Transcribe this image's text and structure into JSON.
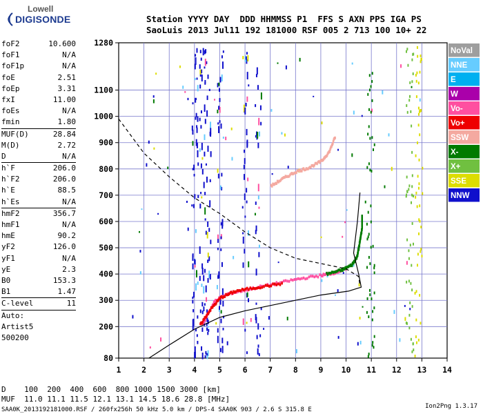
{
  "logo": {
    "line1": "Lowell",
    "line2": "DIGISONDE"
  },
  "header": {
    "line1": "Station YYYY DAY  DDD HHMMSS P1  FFS S AXN PPS IGA PS",
    "line2": "SaoLuis 2013 Jul11 192 181000 RSF 005 2 713 100 10+ 22"
  },
  "params": [
    {
      "key": "foF2",
      "val": "10.600"
    },
    {
      "key": "foF1",
      "val": "N/A"
    },
    {
      "key": "foF1p",
      "val": "N/A"
    },
    {
      "key": "foE",
      "val": "2.51"
    },
    {
      "key": "foEp",
      "val": "3.31"
    },
    {
      "key": "fxI",
      "val": "11.00"
    },
    {
      "key": "foEs",
      "val": "N/A"
    },
    {
      "key": "fmin",
      "val": "1.80"
    },
    {
      "key": "MUF(D)",
      "val": "28.84",
      "sep": true
    },
    {
      "key": "M(D)",
      "val": "2.72"
    },
    {
      "key": "D",
      "val": "N/A"
    },
    {
      "key": "h`F",
      "val": "206.0",
      "sep": true
    },
    {
      "key": "h`F2",
      "val": "206.0"
    },
    {
      "key": "h`E",
      "val": "88.5"
    },
    {
      "key": "h`Es",
      "val": "N/A"
    },
    {
      "key": "hmF2",
      "val": "356.7",
      "sep": true
    },
    {
      "key": "hmF1",
      "val": "N/A"
    },
    {
      "key": "hmE",
      "val": "90.2"
    },
    {
      "key": "yF2",
      "val": "126.0"
    },
    {
      "key": "yF1",
      "val": "N/A"
    },
    {
      "key": "yE",
      "val": "2.3"
    },
    {
      "key": "B0",
      "val": "153.3"
    },
    {
      "key": "B1",
      "val": "1.47"
    },
    {
      "key": "C-level",
      "val": "11",
      "sep": true
    },
    {
      "key": "Auto:",
      "val": "",
      "sep": true
    },
    {
      "key": "Artist5",
      "val": ""
    },
    {
      "key": "500200",
      "val": ""
    }
  ],
  "footer": {
    "d_line": "D    100  200  400  600  800 1000 1500 3000 [km]",
    "muf_line": "MUF  11.0 11.1 11.5 12.1 13.1 14.5 18.6 28.8 [MHz]",
    "file_line": "SAA0K_2013192181000.RSF / 260fx256h 50 kHz 5.0 km / DPS-4 SAA0K 903 / 2.6 S 315.8 E",
    "version": "Ion2Png 1.3.17"
  },
  "legend": [
    {
      "label": "NoVal",
      "color": "#9e9e9e"
    },
    {
      "label": "NNE",
      "color": "#66ccff"
    },
    {
      "label": "E",
      "color": "#00b0f0"
    },
    {
      "label": "W",
      "color": "#aa00aa"
    },
    {
      "label": "Vo-",
      "color": "#ff4fa0"
    },
    {
      "label": "Vo+",
      "color": "#ee0000"
    },
    {
      "label": "SSW",
      "color": "#f4a9a0"
    },
    {
      "label": "X-",
      "color": "#007a00"
    },
    {
      "label": "X+",
      "color": "#70c040"
    },
    {
      "label": "SSE",
      "color": "#dddd00"
    },
    {
      "label": "NNW",
      "color": "#1010cc"
    }
  ],
  "chart_data": {
    "type": "scatter",
    "x_range": [
      1,
      14
    ],
    "y_range": [
      80,
      1280
    ],
    "x_ticks": [
      1,
      2,
      3,
      4,
      5,
      6,
      7,
      8,
      9,
      10,
      11,
      12,
      13,
      14
    ],
    "y_ticks": [
      80,
      200,
      300,
      400,
      500,
      600,
      700,
      800,
      900,
      1000,
      1100,
      1280
    ],
    "grid": true,
    "legend_position": "right",
    "series": [
      {
        "name": "Vo-",
        "color": "#ff4fa0",
        "points": [
          [
            4.3,
            215
          ],
          [
            4.5,
            255
          ],
          [
            4.8,
            305
          ],
          [
            5.3,
            330
          ],
          [
            6,
            345
          ],
          [
            7,
            365
          ],
          [
            8,
            385
          ],
          [
            9,
            400
          ],
          [
            9.5,
            410
          ],
          [
            10,
            425
          ]
        ]
      },
      {
        "name": "Vo+",
        "color": "#ee0000",
        "points": [
          [
            4.2,
            212
          ],
          [
            4.6,
            270
          ],
          [
            5,
            315
          ],
          [
            5.6,
            340
          ],
          [
            6.5,
            355
          ],
          [
            7.5,
            370
          ]
        ]
      },
      {
        "name": "X-",
        "color": "#007a00",
        "points": [
          [
            9.2,
            405
          ],
          [
            9.8,
            420
          ],
          [
            10.2,
            440
          ],
          [
            10.4,
            470
          ],
          [
            10.5,
            520
          ],
          [
            10.6,
            580
          ],
          [
            10.6,
            630
          ]
        ]
      },
      {
        "name": "SSW",
        "color": "#f4a9a0",
        "points": [
          [
            7,
            740
          ],
          [
            7.5,
            770
          ],
          [
            8,
            795
          ],
          [
            8.5,
            810
          ],
          [
            9,
            835
          ],
          [
            9.3,
            870
          ],
          [
            9.55,
            930
          ]
        ]
      },
      {
        "name": "NNW",
        "color": "#1010cc",
        "points": [
          [
            4,
            1200
          ],
          [
            4.1,
            1000
          ],
          [
            4.3,
            800
          ],
          [
            4.5,
            600
          ],
          [
            4.6,
            400
          ],
          [
            5,
            1150
          ],
          [
            6.5,
            900
          ]
        ]
      }
    ],
    "profile_solid": [
      [
        2.2,
        80
      ],
      [
        3,
        130
      ],
      [
        4,
        190
      ],
      [
        5,
        235
      ],
      [
        6,
        260
      ],
      [
        7,
        280
      ],
      [
        8,
        300
      ],
      [
        9,
        320
      ],
      [
        10.1,
        335
      ],
      [
        10.6,
        350
      ],
      [
        10.5,
        400
      ],
      [
        10.3,
        480
      ],
      [
        10.45,
        600
      ],
      [
        10.55,
        710
      ]
    ],
    "profile_dashed": [
      [
        1,
        990
      ],
      [
        2,
        860
      ],
      [
        3,
        770
      ],
      [
        4,
        690
      ],
      [
        5,
        630
      ],
      [
        6,
        560
      ],
      [
        7,
        500
      ],
      [
        8,
        460
      ],
      [
        9,
        440
      ],
      [
        10,
        420
      ],
      [
        10.5,
        390
      ],
      [
        10.55,
        355
      ]
    ]
  }
}
